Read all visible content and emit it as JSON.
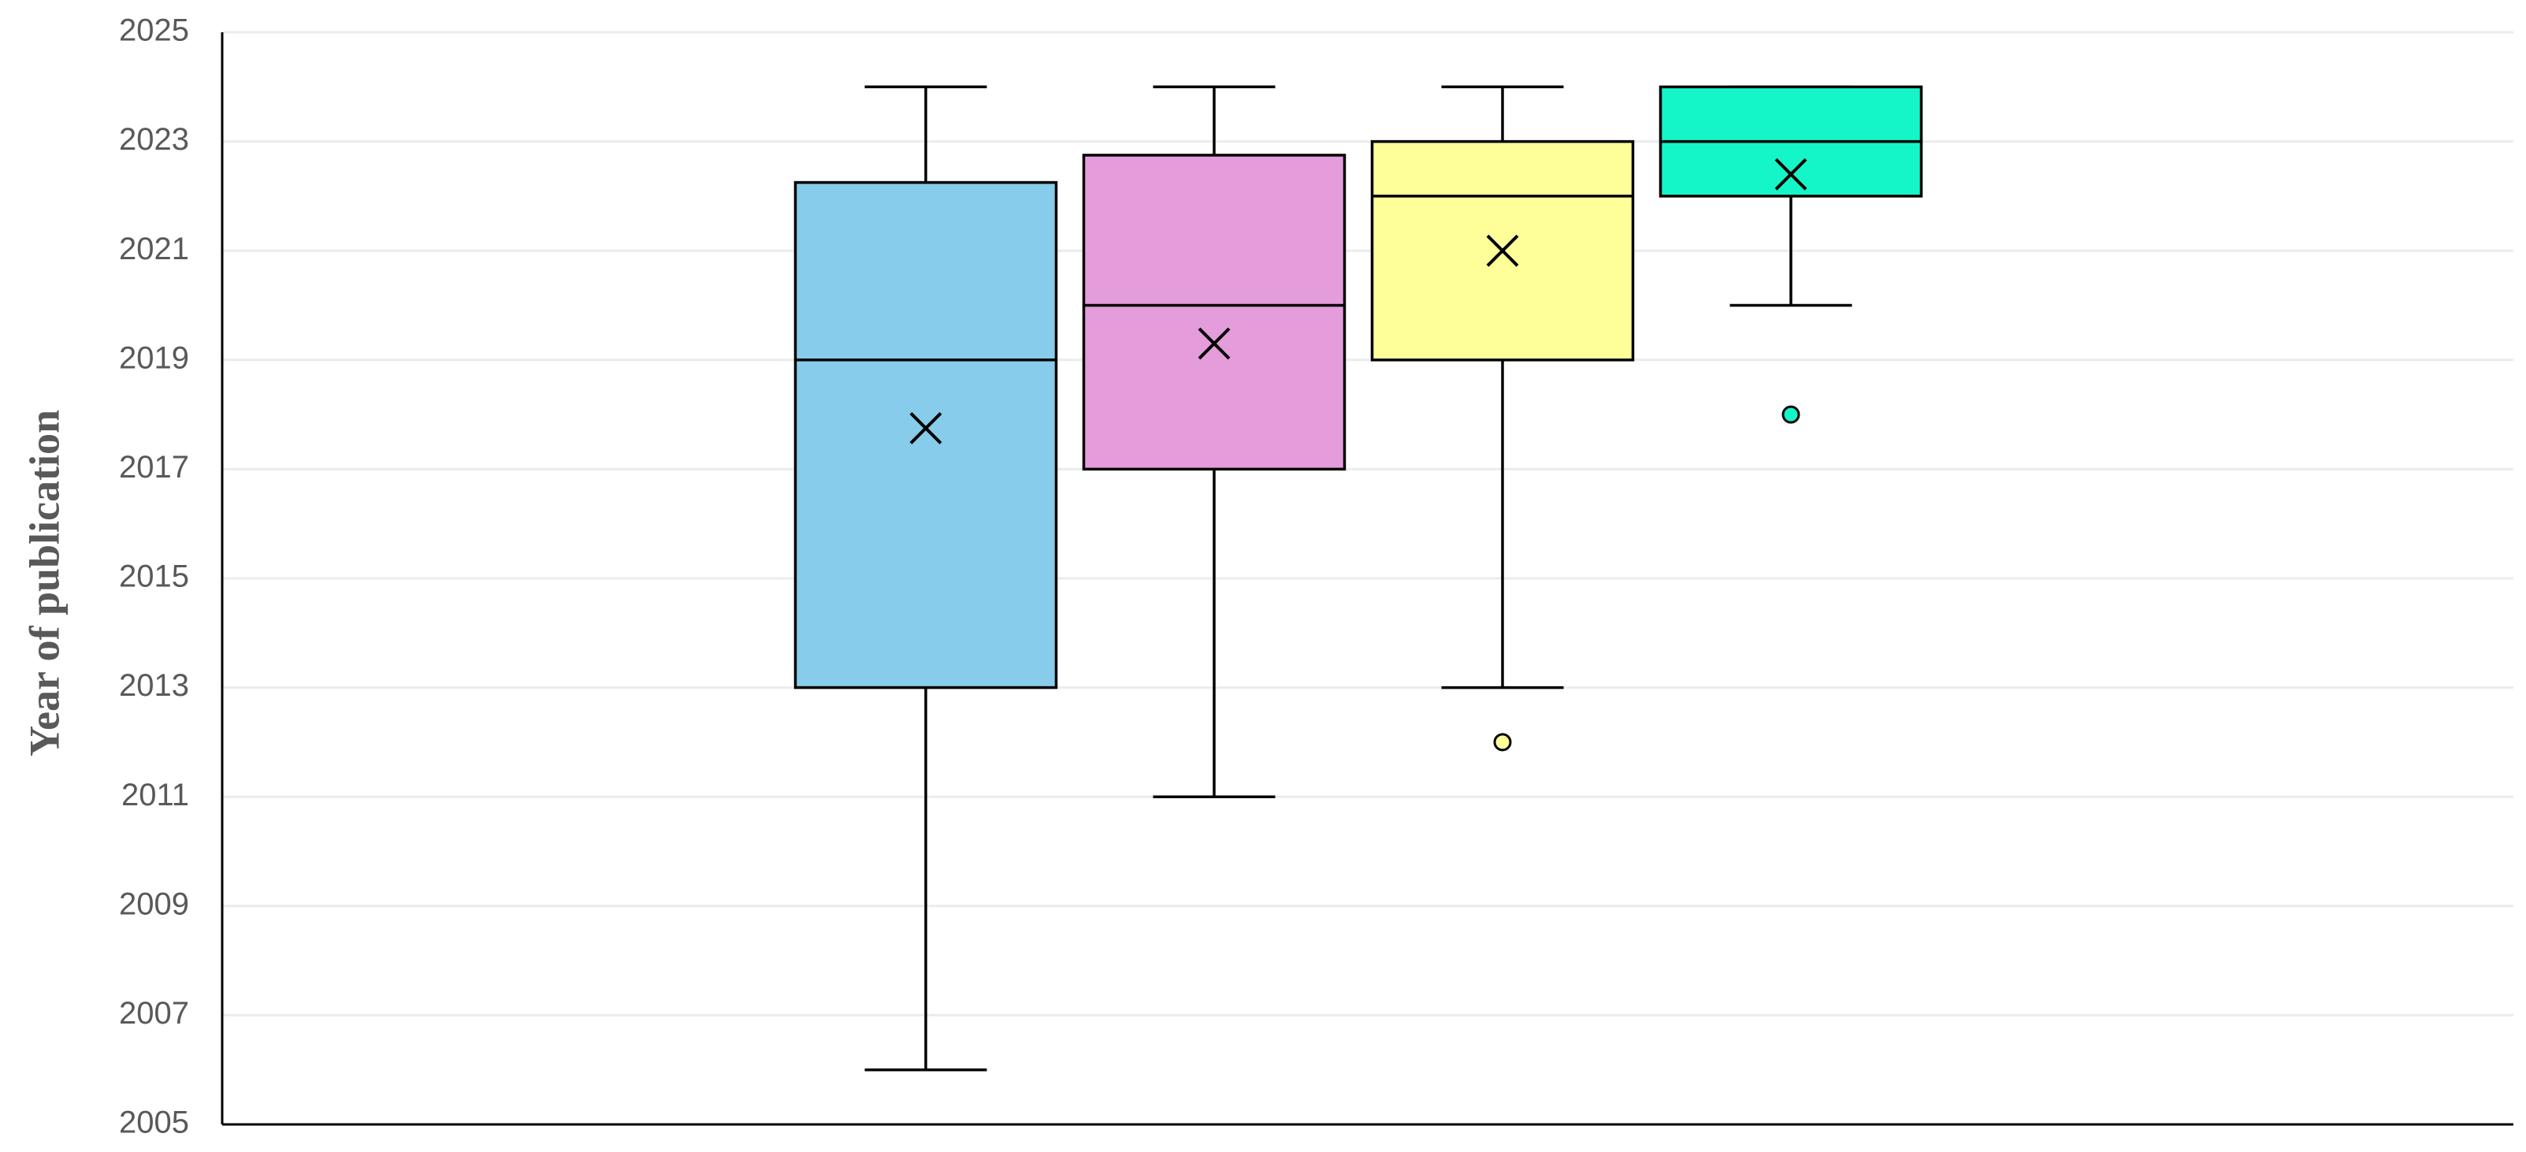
{
  "chart_data": {
    "type": "box",
    "ylabel": "Year of publication",
    "ylim": [
      2005,
      2025
    ],
    "yticks": [
      2005,
      2007,
      2009,
      2011,
      2013,
      2015,
      2017,
      2019,
      2021,
      2023,
      2025
    ],
    "grid": true,
    "series": [
      {
        "color": "#87ccea",
        "min": 2006,
        "q1": 2013,
        "median": 2019,
        "q3": 2022.25,
        "max": 2024,
        "mean": 2017.75
      },
      {
        "color": "#e59cdb",
        "min": 2011,
        "q1": 2017,
        "median": 2020,
        "q3": 2022.75,
        "max": 2024,
        "mean": 2019.3
      },
      {
        "color": "#ffff99",
        "min": 2013,
        "q1": 2019,
        "median": 2022,
        "q3": 2023,
        "max": 2024,
        "mean": 2021,
        "outliers": [
          2012
        ]
      },
      {
        "color": "#14f5c8",
        "min": 2020,
        "q1": 2022,
        "median": 2023,
        "q3": 2024,
        "max": 2024,
        "mean": 2022.4,
        "outliers": [
          2018
        ]
      }
    ]
  }
}
